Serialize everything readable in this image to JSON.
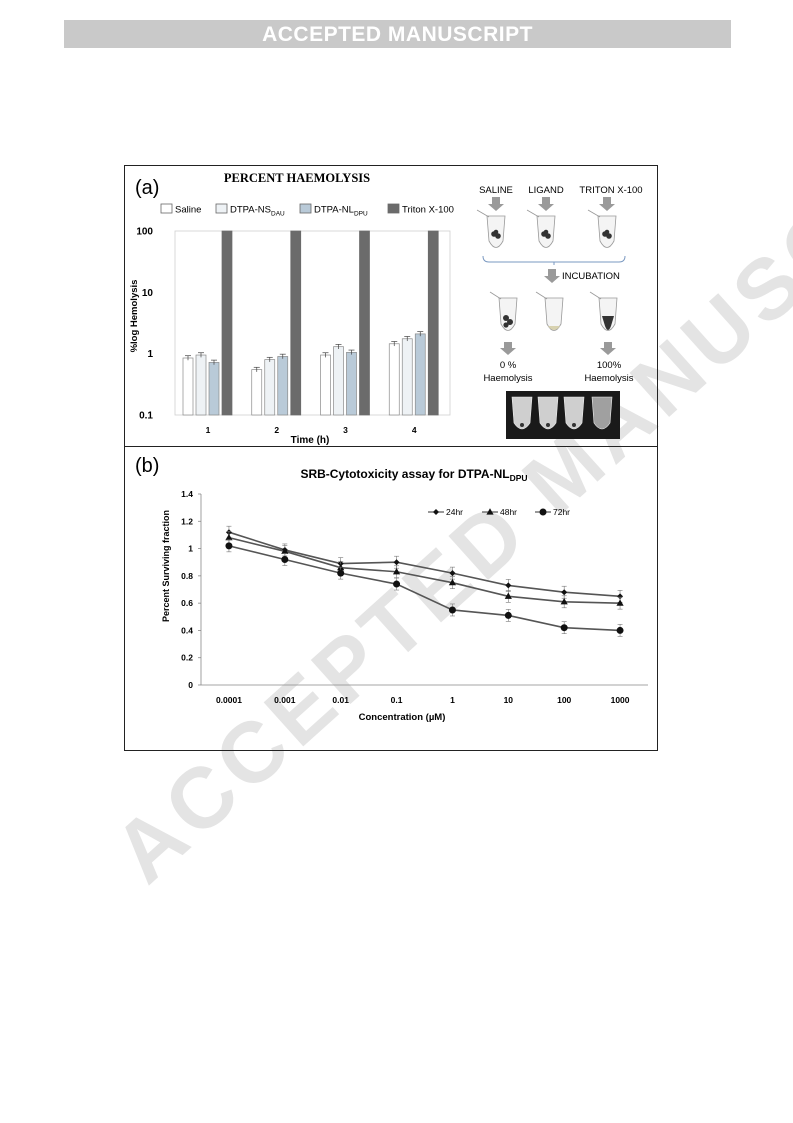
{
  "banner": {
    "text": "ACCEPTED MANUSCRIPT"
  },
  "watermark": {
    "text": "ACCEPTED MANUSCRIPT"
  },
  "panel_a": {
    "label": "(a)",
    "schematic": {
      "saline": "SALINE",
      "ligand": "LIGAND",
      "triton": "TRITON X-100",
      "incubation": "INCUBATION",
      "zero_pct": "0 %",
      "zero_desc": "Haemolysis",
      "hundred_pct": "100%",
      "hundred_desc": "Haemolysis"
    }
  },
  "panel_b": {
    "label": "(b)"
  },
  "colors": {
    "saline": "#ffffff",
    "ns": "#eef2f5",
    "nl": "#b9cad8",
    "triton": "#6b6b6b",
    "line": "#555555"
  },
  "chart_data": [
    {
      "type": "bar",
      "title": "PERCENT HAEMOLYSIS",
      "xlabel": "Time (h)",
      "ylabel": "%log Hemolysis",
      "yscale": "log",
      "ylim": [
        0.1,
        100
      ],
      "yticks": [
        "0.1",
        "1",
        "10",
        "100"
      ],
      "categories": [
        "1",
        "2",
        "3",
        "4"
      ],
      "legend_position": "top",
      "series": [
        {
          "name": "Saline",
          "name_sub": "",
          "values": [
            0.85,
            0.55,
            0.95,
            1.45
          ]
        },
        {
          "name": "DTPA-NS",
          "name_sub": "DAU",
          "values": [
            0.95,
            0.8,
            1.3,
            1.75
          ]
        },
        {
          "name": "DTPA-NL",
          "name_sub": "DPU",
          "values": [
            0.72,
            0.9,
            1.05,
            2.1
          ]
        },
        {
          "name": "Triton X-100",
          "name_sub": "",
          "values": [
            100,
            100,
            100,
            100
          ]
        }
      ]
    },
    {
      "type": "line",
      "title": "SRB-Cytotoxicity assay for DTPA-NL",
      "title_sub": "DPU",
      "xlabel": "Concentration (µM)",
      "ylabel": "Percent Surviving fraction",
      "categories": [
        "0.0001",
        "0.001",
        "0.01",
        "0.1",
        "1",
        "10",
        "100",
        "1000"
      ],
      "ylim": [
        0,
        1.4
      ],
      "yticks": [
        "0",
        "0.2",
        "0.4",
        "0.6",
        "0.8",
        "1",
        "1.2",
        "1.4"
      ],
      "legend_position": "top-right",
      "series": [
        {
          "name": "24hr",
          "marker": "diamond",
          "values": [
            1.12,
            0.99,
            0.89,
            0.9,
            0.82,
            0.73,
            0.68,
            0.65
          ]
        },
        {
          "name": "48hr",
          "marker": "triangle",
          "values": [
            1.08,
            0.98,
            0.86,
            0.83,
            0.75,
            0.65,
            0.61,
            0.6
          ]
        },
        {
          "name": "72hr",
          "marker": "circle",
          "values": [
            1.02,
            0.92,
            0.82,
            0.74,
            0.55,
            0.51,
            0.42,
            0.4
          ]
        }
      ]
    }
  ]
}
